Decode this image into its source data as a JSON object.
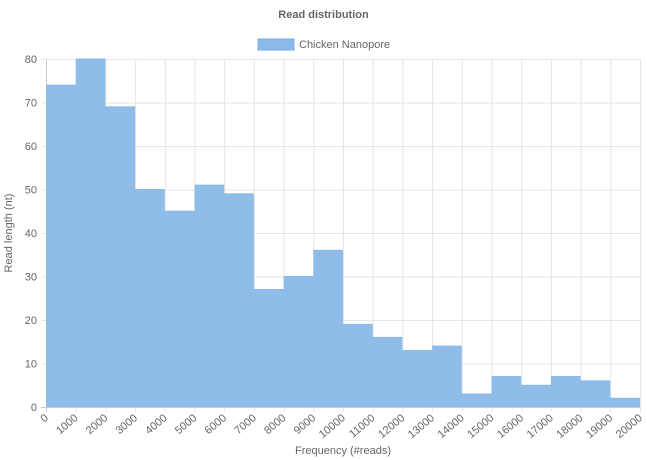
{
  "chart_data": {
    "type": "area",
    "step": true,
    "title": "Read distribution",
    "xlabel": "Frequency (#reads)",
    "ylabel": "Read length (nt)",
    "x_ticks": [
      "0",
      "1000",
      "2000",
      "3000",
      "4000",
      "5000",
      "6000",
      "7000",
      "8000",
      "9000",
      "10000",
      "11000",
      "12000",
      "13000",
      "14000",
      "15000",
      "16000",
      "17000",
      "18000",
      "19000",
      "20000"
    ],
    "y_ticks": [
      "0",
      "10",
      "20",
      "30",
      "40",
      "50",
      "60",
      "70",
      "80"
    ],
    "xlim": [
      0,
      20000
    ],
    "ylim": [
      0,
      80
    ],
    "grid": true,
    "legend_position": "top-center",
    "series": [
      {
        "name": "Chicken Nanopore",
        "color": "#8ab8e8",
        "x": [
          0,
          1000,
          2000,
          3000,
          4000,
          5000,
          6000,
          7000,
          8000,
          9000,
          10000,
          11000,
          12000,
          13000,
          14000,
          15000,
          16000,
          17000,
          18000,
          19000
        ],
        "values": [
          74,
          80,
          69,
          50,
          45,
          51,
          49,
          27,
          30,
          36,
          19,
          16,
          13,
          14,
          3,
          7,
          5,
          7,
          6,
          2
        ]
      }
    ]
  }
}
